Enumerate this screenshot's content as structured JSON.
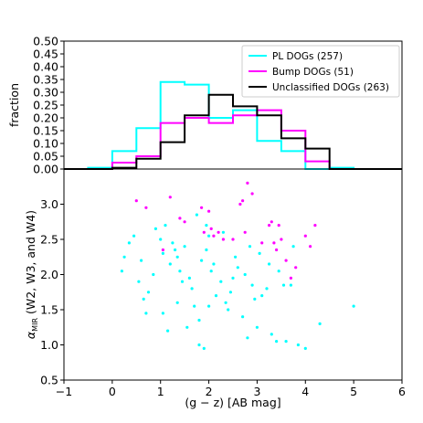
{
  "chart_data": [
    {
      "type": "step-histogram",
      "ylabel": "fraction",
      "xlim": [
        -1,
        6
      ],
      "ylim": [
        0,
        0.5
      ],
      "yticks": [
        "0.00",
        "0.05",
        "0.10",
        "0.15",
        "0.20",
        "0.25",
        "0.30",
        "0.35",
        "0.40",
        "0.45",
        "0.50"
      ],
      "bin_edges": [
        -0.5,
        0.0,
        0.5,
        1.0,
        1.5,
        2.0,
        2.5,
        3.0,
        3.5,
        4.0,
        4.5,
        5.0
      ],
      "legend_position": "top-right",
      "series": [
        {
          "name": "PL DOGs (257)",
          "color": "#00ffff",
          "values": [
            0.005,
            0.07,
            0.16,
            0.34,
            0.33,
            0.2,
            0.23,
            0.11,
            0.07,
            0.0,
            0.005
          ]
        },
        {
          "name": "Bump DOGs (51)",
          "color": "#ff00ff",
          "values": [
            0.0,
            0.025,
            0.05,
            0.18,
            0.2,
            0.18,
            0.21,
            0.23,
            0.15,
            0.03,
            0.0
          ]
        },
        {
          "name": "Unclassified DOGs (263)",
          "color": "#000000",
          "values": [
            0.0,
            0.005,
            0.04,
            0.105,
            0.21,
            0.29,
            0.245,
            0.21,
            0.12,
            0.08,
            0.0
          ]
        }
      ]
    },
    {
      "type": "scatter",
      "xlabel": "(g − z) [AB mag]",
      "ylabel_alpha": "α",
      "ylabel_sub": "MIR",
      "ylabel_rest": " (W2, W3, and W4)",
      "xlim": [
        -1,
        6
      ],
      "ylim": [
        0.5,
        3.5
      ],
      "xticks": [
        "−1",
        "0",
        "1",
        "2",
        "3",
        "4",
        "5",
        "6"
      ],
      "yticks": [
        "0.5",
        "1.0",
        "1.5",
        "2.0",
        "2.5",
        "3.0"
      ],
      "series": [
        {
          "name": "PL DOGs",
          "color": "#00ffff",
          "x": [
            1.1,
            0.35,
            0.25,
            1.0,
            1.75,
            1.5,
            1.95,
            1.25,
            2.0,
            2.6,
            1.8,
            2.8,
            1.9,
            3.0,
            3.4,
            0.65,
            1.35,
            1.05,
            1.8,
            2.0,
            2.4,
            3.7,
            4.3,
            5.0,
            3.85,
            3.6,
            4.0,
            3.3,
            0.2,
            0.55,
            0.75,
            1.05,
            1.2,
            1.4,
            1.6,
            1.85,
            2.05,
            2.25,
            2.45,
            2.55,
            2.75,
            2.9,
            3.05,
            3.25,
            0.45,
            0.9,
            1.3,
            1.65,
            2.15,
            2.35,
            2.85,
            3.1,
            3.45,
            0.7,
            1.15,
            1.55,
            2.3,
            2.7,
            3.55,
            1.45,
            0.85,
            1.95,
            2.5,
            3.2,
            1.7,
            3.75,
            0.6,
            1.35,
            2.1,
            2.95
          ],
          "y": [
            2.7,
            2.45,
            2.25,
            2.5,
            2.85,
            2.4,
            2.7,
            2.45,
            2.55,
            2.1,
            1.0,
            1.1,
            0.95,
            1.25,
            1.05,
            1.65,
            1.6,
            1.45,
            1.35,
            1.55,
            1.5,
            1.85,
            1.3,
            1.55,
            1.0,
            1.05,
            0.95,
            1.15,
            2.05,
            1.9,
            1.75,
            2.3,
            2.15,
            2.05,
            1.95,
            2.2,
            2.05,
            1.9,
            1.75,
            2.25,
            2.0,
            1.85,
            2.3,
            2.15,
            2.55,
            2.65,
            2.35,
            1.8,
            1.7,
            1.6,
            2.4,
            1.7,
            2.05,
            1.45,
            1.2,
            1.25,
            2.6,
            1.4,
            1.85,
            1.9,
            2.0,
            2.35,
            1.95,
            1.8,
            1.55,
            2.4,
            2.2,
            2.25,
            2.15,
            1.65
          ]
        },
        {
          "name": "Bump DOGs",
          "color": "#ff00ff",
          "x": [
            0.5,
            0.7,
            1.2,
            1.5,
            1.85,
            2.0,
            2.05,
            2.65,
            2.7,
            2.8,
            2.9,
            3.3,
            3.45,
            3.5,
            4.0,
            4.2,
            1.4,
            2.1,
            2.3,
            1.9,
            2.5,
            3.1,
            3.4,
            3.6,
            3.8,
            4.1,
            3.7,
            2.2,
            3.35,
            2.75,
            1.05,
            3.25
          ],
          "y": [
            3.05,
            2.95,
            3.1,
            2.75,
            2.95,
            2.9,
            2.65,
            3.0,
            3.05,
            3.3,
            3.15,
            2.75,
            2.7,
            2.5,
            2.55,
            2.7,
            2.8,
            2.55,
            2.5,
            2.6,
            2.5,
            2.45,
            2.35,
            2.2,
            2.1,
            2.4,
            1.95,
            2.6,
            2.45,
            2.6,
            2.35,
            2.7
          ]
        }
      ]
    }
  ]
}
